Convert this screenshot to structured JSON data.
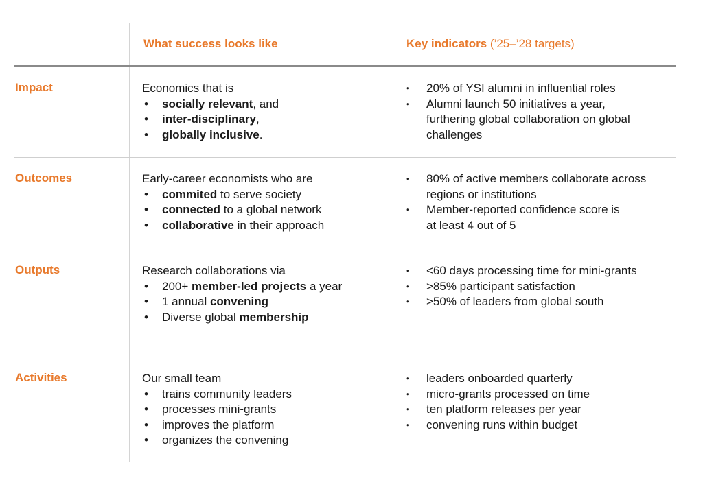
{
  "headers": {
    "col2": "What success looks like",
    "col3_bold": "Key indicators",
    "col3_light": " (’25–’28 targets)"
  },
  "rows": [
    {
      "label": "Impact",
      "lead": "Economics that is",
      "items": [
        {
          "bold": "socially relevant",
          "rest": ", and"
        },
        {
          "bold": "inter-disciplinary",
          "rest": ","
        },
        {
          "bold": "globally inclusive",
          "rest": "."
        }
      ],
      "indicators": [
        "20% of YSI alumni in influential roles",
        "Alumni launch 50 initiatives a year, furthering global collaboration on global challenges"
      ]
    },
    {
      "label": "Outcomes",
      "lead": "Early-career economists who are",
      "items": [
        {
          "bold": "commited",
          "rest": " to serve society"
        },
        {
          "bold": "connected",
          "rest": " to a global network"
        },
        {
          "bold": "collaborative",
          "rest": " in their approach"
        }
      ],
      "indicators": [
        "80% of active members collaborate across regions or institutions",
        "Member-reported confidence score is at least 4 out of 5"
      ]
    },
    {
      "label": "Outputs",
      "lead": "Research collaborations via",
      "items": [
        {
          "pre": "200+ ",
          "bold": "member-led projects",
          "rest": " a year"
        },
        {
          "pre": "1 annual ",
          "bold": "convening",
          "rest": ""
        },
        {
          "pre": "Diverse global ",
          "bold": "membership",
          "rest": ""
        }
      ],
      "indicators": [
        "<60 days processing time for mini-grants",
        ">85% participant satisfaction",
        ">50% of leaders from global south"
      ]
    },
    {
      "label": "Activities",
      "lead": "Our small team",
      "items": [
        {
          "rest": "trains community leaders"
        },
        {
          "rest": "processes mini-grants"
        },
        {
          "rest": "improves the platform"
        },
        {
          "rest": "organizes the convening"
        }
      ],
      "indicators": [
        "leaders onboarded quarterly",
        "micro-grants processed on time",
        "ten platform releases per year",
        "convening runs within budget"
      ]
    }
  ],
  "bullet": "•",
  "colors": {
    "accent": "#e8792b",
    "text": "#1a1a1a",
    "rule": "#cfcfcf"
  }
}
